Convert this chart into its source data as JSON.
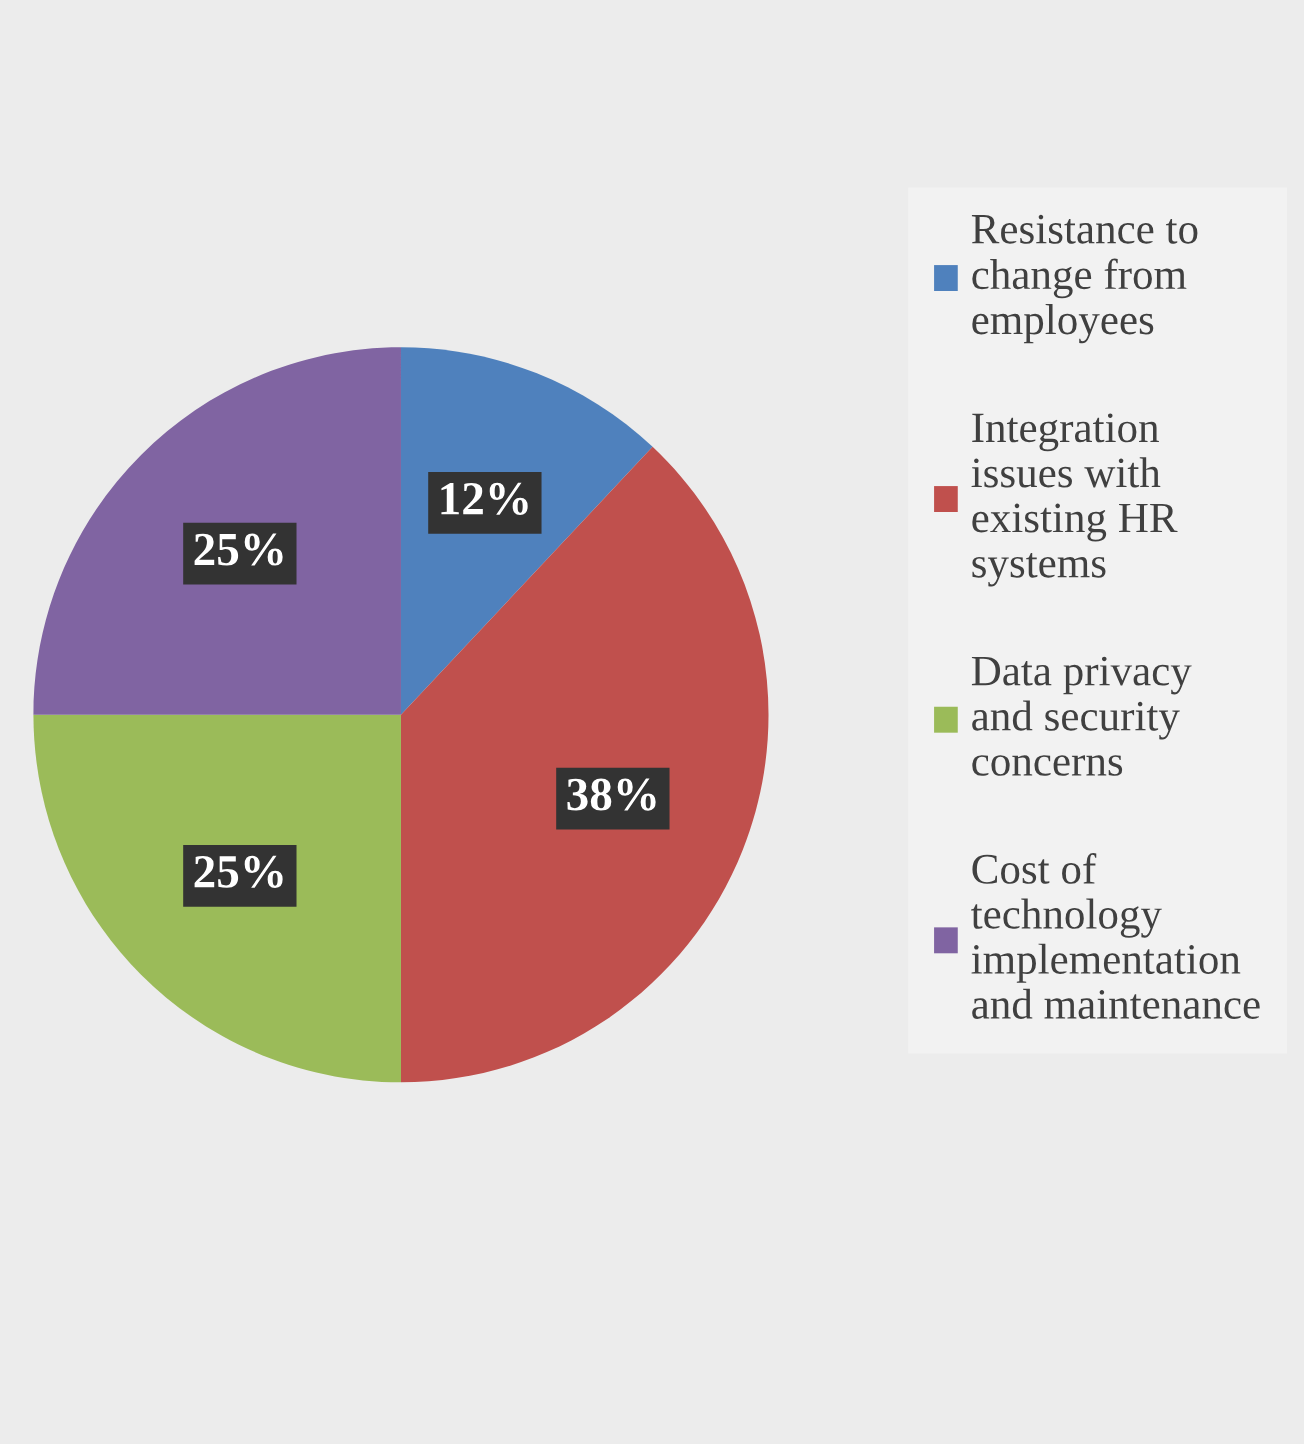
{
  "chart_data": {
    "type": "pie",
    "categories": [
      "Resistance to change from employees",
      "Integration issues with existing HR systems",
      "Data privacy and security concerns",
      "Cost of technology implementation and maintenance"
    ],
    "values": [
      12,
      38,
      25,
      25
    ],
    "colors": [
      "#4f81bd",
      "#c0504d",
      "#9bbb59",
      "#8064a2"
    ],
    "value_labels": [
      "12%",
      "38%",
      "25%",
      "25%"
    ],
    "legend": "right"
  }
}
